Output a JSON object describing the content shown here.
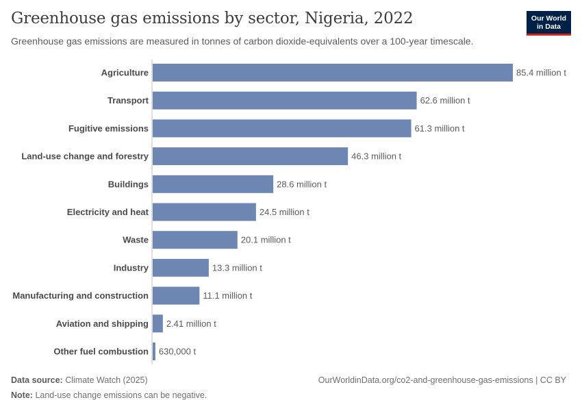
{
  "header": {
    "title": "Greenhouse gas emissions by sector, Nigeria, 2022",
    "subtitle": "Greenhouse gas emissions are measured in tonnes of carbon dioxide-equivalents over a 100-year timescale."
  },
  "logo": {
    "line1": "Our World",
    "line2": "in Data"
  },
  "footer": {
    "source_label": "Data source:",
    "source_value": "Climate Watch (2025)",
    "url": "OurWorldinData.org/co2-and-greenhouse-gas-emissions | CC BY",
    "note_label": "Note:",
    "note_value": "Land-use change emissions can be negative."
  },
  "colors": {
    "bar": "#6d87b2",
    "axis": "#bdbdbd",
    "logo_bg": "#002147",
    "logo_accent": "#ce261e"
  },
  "chart_data": {
    "type": "bar",
    "orientation": "horizontal",
    "categories": [
      "Agriculture",
      "Transport",
      "Fugitive emissions",
      "Land-use change and forestry",
      "Buildings",
      "Electricity and heat",
      "Waste",
      "Industry",
      "Manufacturing and construction",
      "Aviation and shipping",
      "Other fuel combustion"
    ],
    "values": [
      85400000,
      62600000,
      61300000,
      46300000,
      28600000,
      24500000,
      20100000,
      13300000,
      11100000,
      2410000,
      630000
    ],
    "value_labels": [
      "85.4 million t",
      "62.6 million t",
      "61.3 million t",
      "46.3 million t",
      "28.6 million t",
      "24.5 million t",
      "20.1 million t",
      "13.3 million t",
      "11.1 million t",
      "2.41 million t",
      "630,000 t"
    ],
    "unit": "tonnes CO2e",
    "xlim": [
      0,
      85400000
    ],
    "grid": false
  }
}
